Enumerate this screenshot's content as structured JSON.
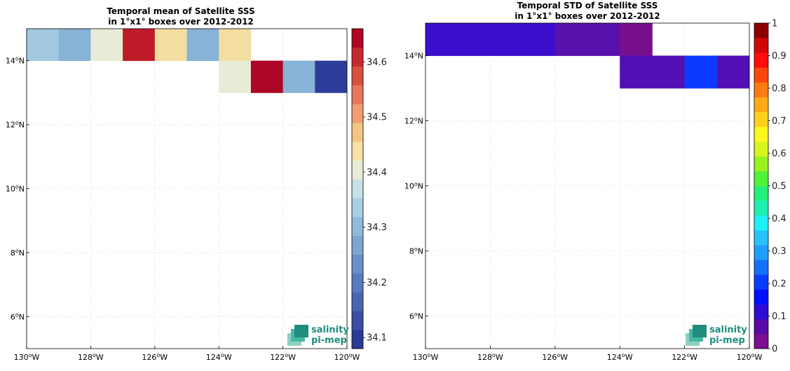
{
  "chart_data": [
    {
      "type": "heatmap",
      "title_line1": "Temporal mean of Satellite SSS",
      "title_line2": "in 1°x1° boxes over 2012-2012",
      "x_ticks": [
        "130°W",
        "128°W",
        "126°W",
        "124°W",
        "122°W",
        "120°W"
      ],
      "y_ticks": [
        "6°N",
        "8°N",
        "10°N",
        "12°N",
        "14°N"
      ],
      "xlim": [
        -130,
        -120
      ],
      "ylim": [
        5,
        15
      ],
      "grid": true,
      "colorbar": {
        "range": [
          34.08,
          34.66
        ],
        "ticks": [
          "34.1",
          "34.2",
          "34.3",
          "34.4",
          "34.5",
          "34.6"
        ],
        "colors": [
          "#2b3a97",
          "#3a4fa4",
          "#4a65b2",
          "#5a7bbf",
          "#6b90c8",
          "#7ea6d2",
          "#92b9dc",
          "#a9cde3",
          "#c6e2e8",
          "#e8ecd6",
          "#f6e2a5",
          "#f3c585",
          "#ee9e72",
          "#e6775c",
          "#d8503f",
          "#c8292f",
          "#ae0623"
        ]
      },
      "cells": [
        {
          "lon": -130,
          "lat": 14,
          "value": 34.33,
          "color": "#a3c9e0"
        },
        {
          "lon": -129,
          "lat": 14,
          "value": 34.29,
          "color": "#86b3d6"
        },
        {
          "lon": -128,
          "lat": 14,
          "value": 34.39,
          "color": "#e8ecd6"
        },
        {
          "lon": -127,
          "lat": 14,
          "value": 34.63,
          "color": "#c01b2a"
        },
        {
          "lon": -126,
          "lat": 14,
          "value": 34.43,
          "color": "#f3dea2"
        },
        {
          "lon": -125,
          "lat": 14,
          "value": 34.28,
          "color": "#86b3d6"
        },
        {
          "lon": -124,
          "lat": 14,
          "value": 34.43,
          "color": "#f3dea2"
        },
        {
          "lon": -124,
          "lat": 13,
          "value": 34.39,
          "color": "#e8ecd6"
        },
        {
          "lon": -123,
          "lat": 13,
          "value": 34.65,
          "color": "#ad0524"
        },
        {
          "lon": -122,
          "lat": 13,
          "value": 34.28,
          "color": "#86b3d6"
        },
        {
          "lon": -121,
          "lat": 13,
          "value": 34.12,
          "color": "#2f3d9a"
        }
      ]
    },
    {
      "type": "heatmap",
      "title_line1": "Temporal STD of Satellite SSS",
      "title_line2": "in 1°x1° boxes over 2012-2012",
      "x_ticks": [
        "130°W",
        "128°W",
        "126°W",
        "124°W",
        "122°W",
        "120°W"
      ],
      "y_ticks": [
        "6°N",
        "8°N",
        "10°N",
        "12°N",
        "14°N"
      ],
      "xlim": [
        -130,
        -120
      ],
      "ylim": [
        5,
        15
      ],
      "grid": true,
      "colorbar": {
        "range": [
          0,
          1
        ],
        "ticks": [
          "0",
          "0.1",
          "0.2",
          "0.3",
          "0.4",
          "0.5",
          "0.6",
          "0.7",
          "0.8",
          "0.9",
          "1"
        ],
        "colors": [
          "#7a0f8f",
          "#5a0aa8",
          "#2f0bd6",
          "#0010ff",
          "#0a3cff",
          "#1470ff",
          "#1f9cff",
          "#27c2ff",
          "#1ef0f8",
          "#1ef0b4",
          "#22f07a",
          "#50f23a",
          "#98f21f",
          "#d6f41c",
          "#fff81c",
          "#ffd11a",
          "#ffaa14",
          "#ff7b10",
          "#ff460c",
          "#ff0c0c",
          "#d30606",
          "#8e0000"
        ]
      },
      "cells": [
        {
          "lon": -130,
          "lat": 14,
          "value": 0.14,
          "color": "#3a0fcd"
        },
        {
          "lon": -129,
          "lat": 14,
          "value": 0.14,
          "color": "#3a0fcd"
        },
        {
          "lon": -128,
          "lat": 14,
          "value": 0.14,
          "color": "#3a0fcd"
        },
        {
          "lon": -127,
          "lat": 14,
          "value": 0.14,
          "color": "#3a0fcd"
        },
        {
          "lon": -126,
          "lat": 14,
          "value": 0.09,
          "color": "#5810aa"
        },
        {
          "lon": -125,
          "lat": 14,
          "value": 0.09,
          "color": "#5810aa"
        },
        {
          "lon": -124,
          "lat": 14,
          "value": 0.03,
          "color": "#78108e"
        },
        {
          "lon": -124,
          "lat": 13,
          "value": 0.1,
          "color": "#5210b4"
        },
        {
          "lon": -123,
          "lat": 13,
          "value": 0.1,
          "color": "#5210b4"
        },
        {
          "lon": -122,
          "lat": 13,
          "value": 0.21,
          "color": "#0a3cff"
        },
        {
          "lon": -121,
          "lat": 13,
          "value": 0.1,
          "color": "#5210b4"
        }
      ]
    }
  ],
  "logo": {
    "line1": "salinity",
    "line2": "pi-mep"
  }
}
